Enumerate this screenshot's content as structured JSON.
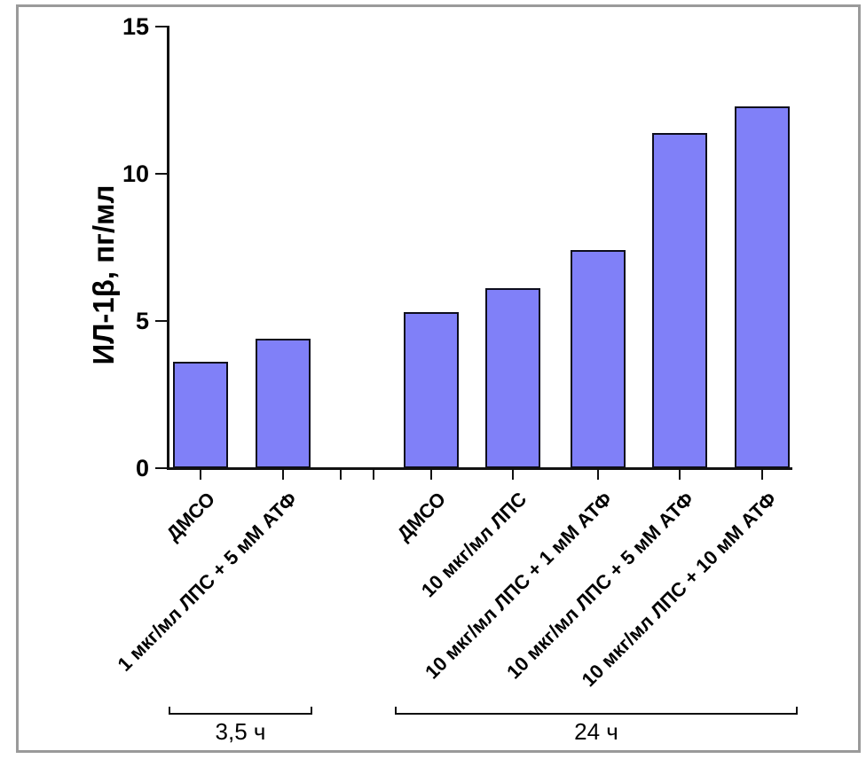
{
  "figure": {
    "background_color": "#ffffff",
    "frame_color": "#9a9a9a"
  },
  "chart_data": {
    "type": "bar",
    "title": "",
    "xlabel": "",
    "ylabel": "ИЛ-1β, пг/мл",
    "ylim": [
      0,
      15
    ],
    "yticks": [
      "0",
      "5",
      "10",
      "15"
    ],
    "ytick_values": [
      0,
      5,
      10,
      15
    ],
    "grid": false,
    "legend": null,
    "bar_color": "#8080f8",
    "bar_edge_color": "#0d0d1c",
    "categories": [
      "ДМСО",
      "1 мкг/мл ЛПС + 5 мМ АТФ",
      "ДМСО",
      "10 мкг/мл ЛПС",
      "10 мкг/мл ЛПС + 1 мМ АТФ",
      "10 мкг/мл ЛПС + 5 мМ АТФ",
      "10 мкг/мл ЛПС + 10 мМ АТФ"
    ],
    "values": [
      3.6,
      4.4,
      5.3,
      6.1,
      7.4,
      11.4,
      12.3
    ],
    "groups": [
      {
        "label": "3,5 ч",
        "category_indices": [
          0,
          1
        ]
      },
      {
        "label": "24 ч",
        "category_indices": [
          2,
          3,
          4,
          5,
          6
        ]
      }
    ]
  }
}
